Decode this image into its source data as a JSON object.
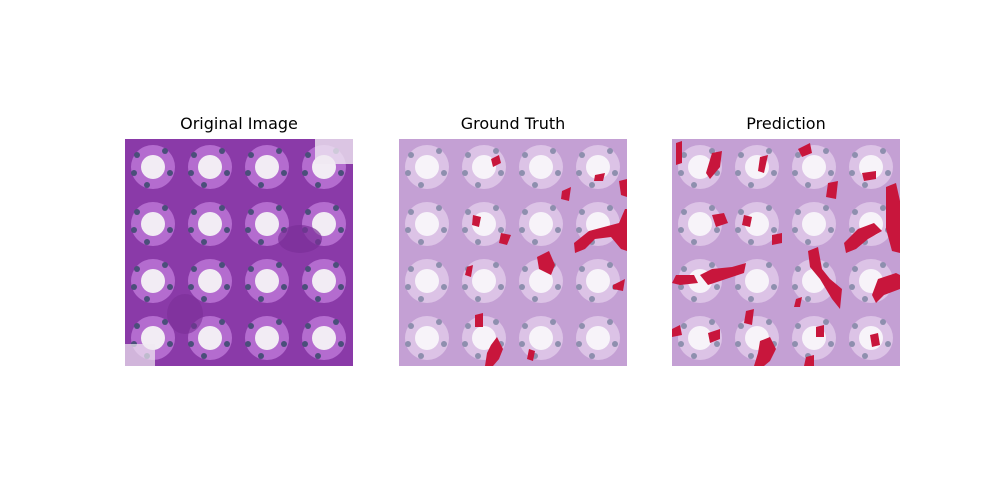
{
  "figure": {
    "panels": [
      {
        "title": "Original Image",
        "overlay": "none",
        "tint": "#8e3fae"
      },
      {
        "title": "Ground Truth",
        "overlay": "mask",
        "tint": "#c9a6d6"
      },
      {
        "title": "Prediction",
        "overlay": "mask",
        "tint": "#c9a6d6"
      }
    ],
    "mask_color": "#c8163c"
  }
}
